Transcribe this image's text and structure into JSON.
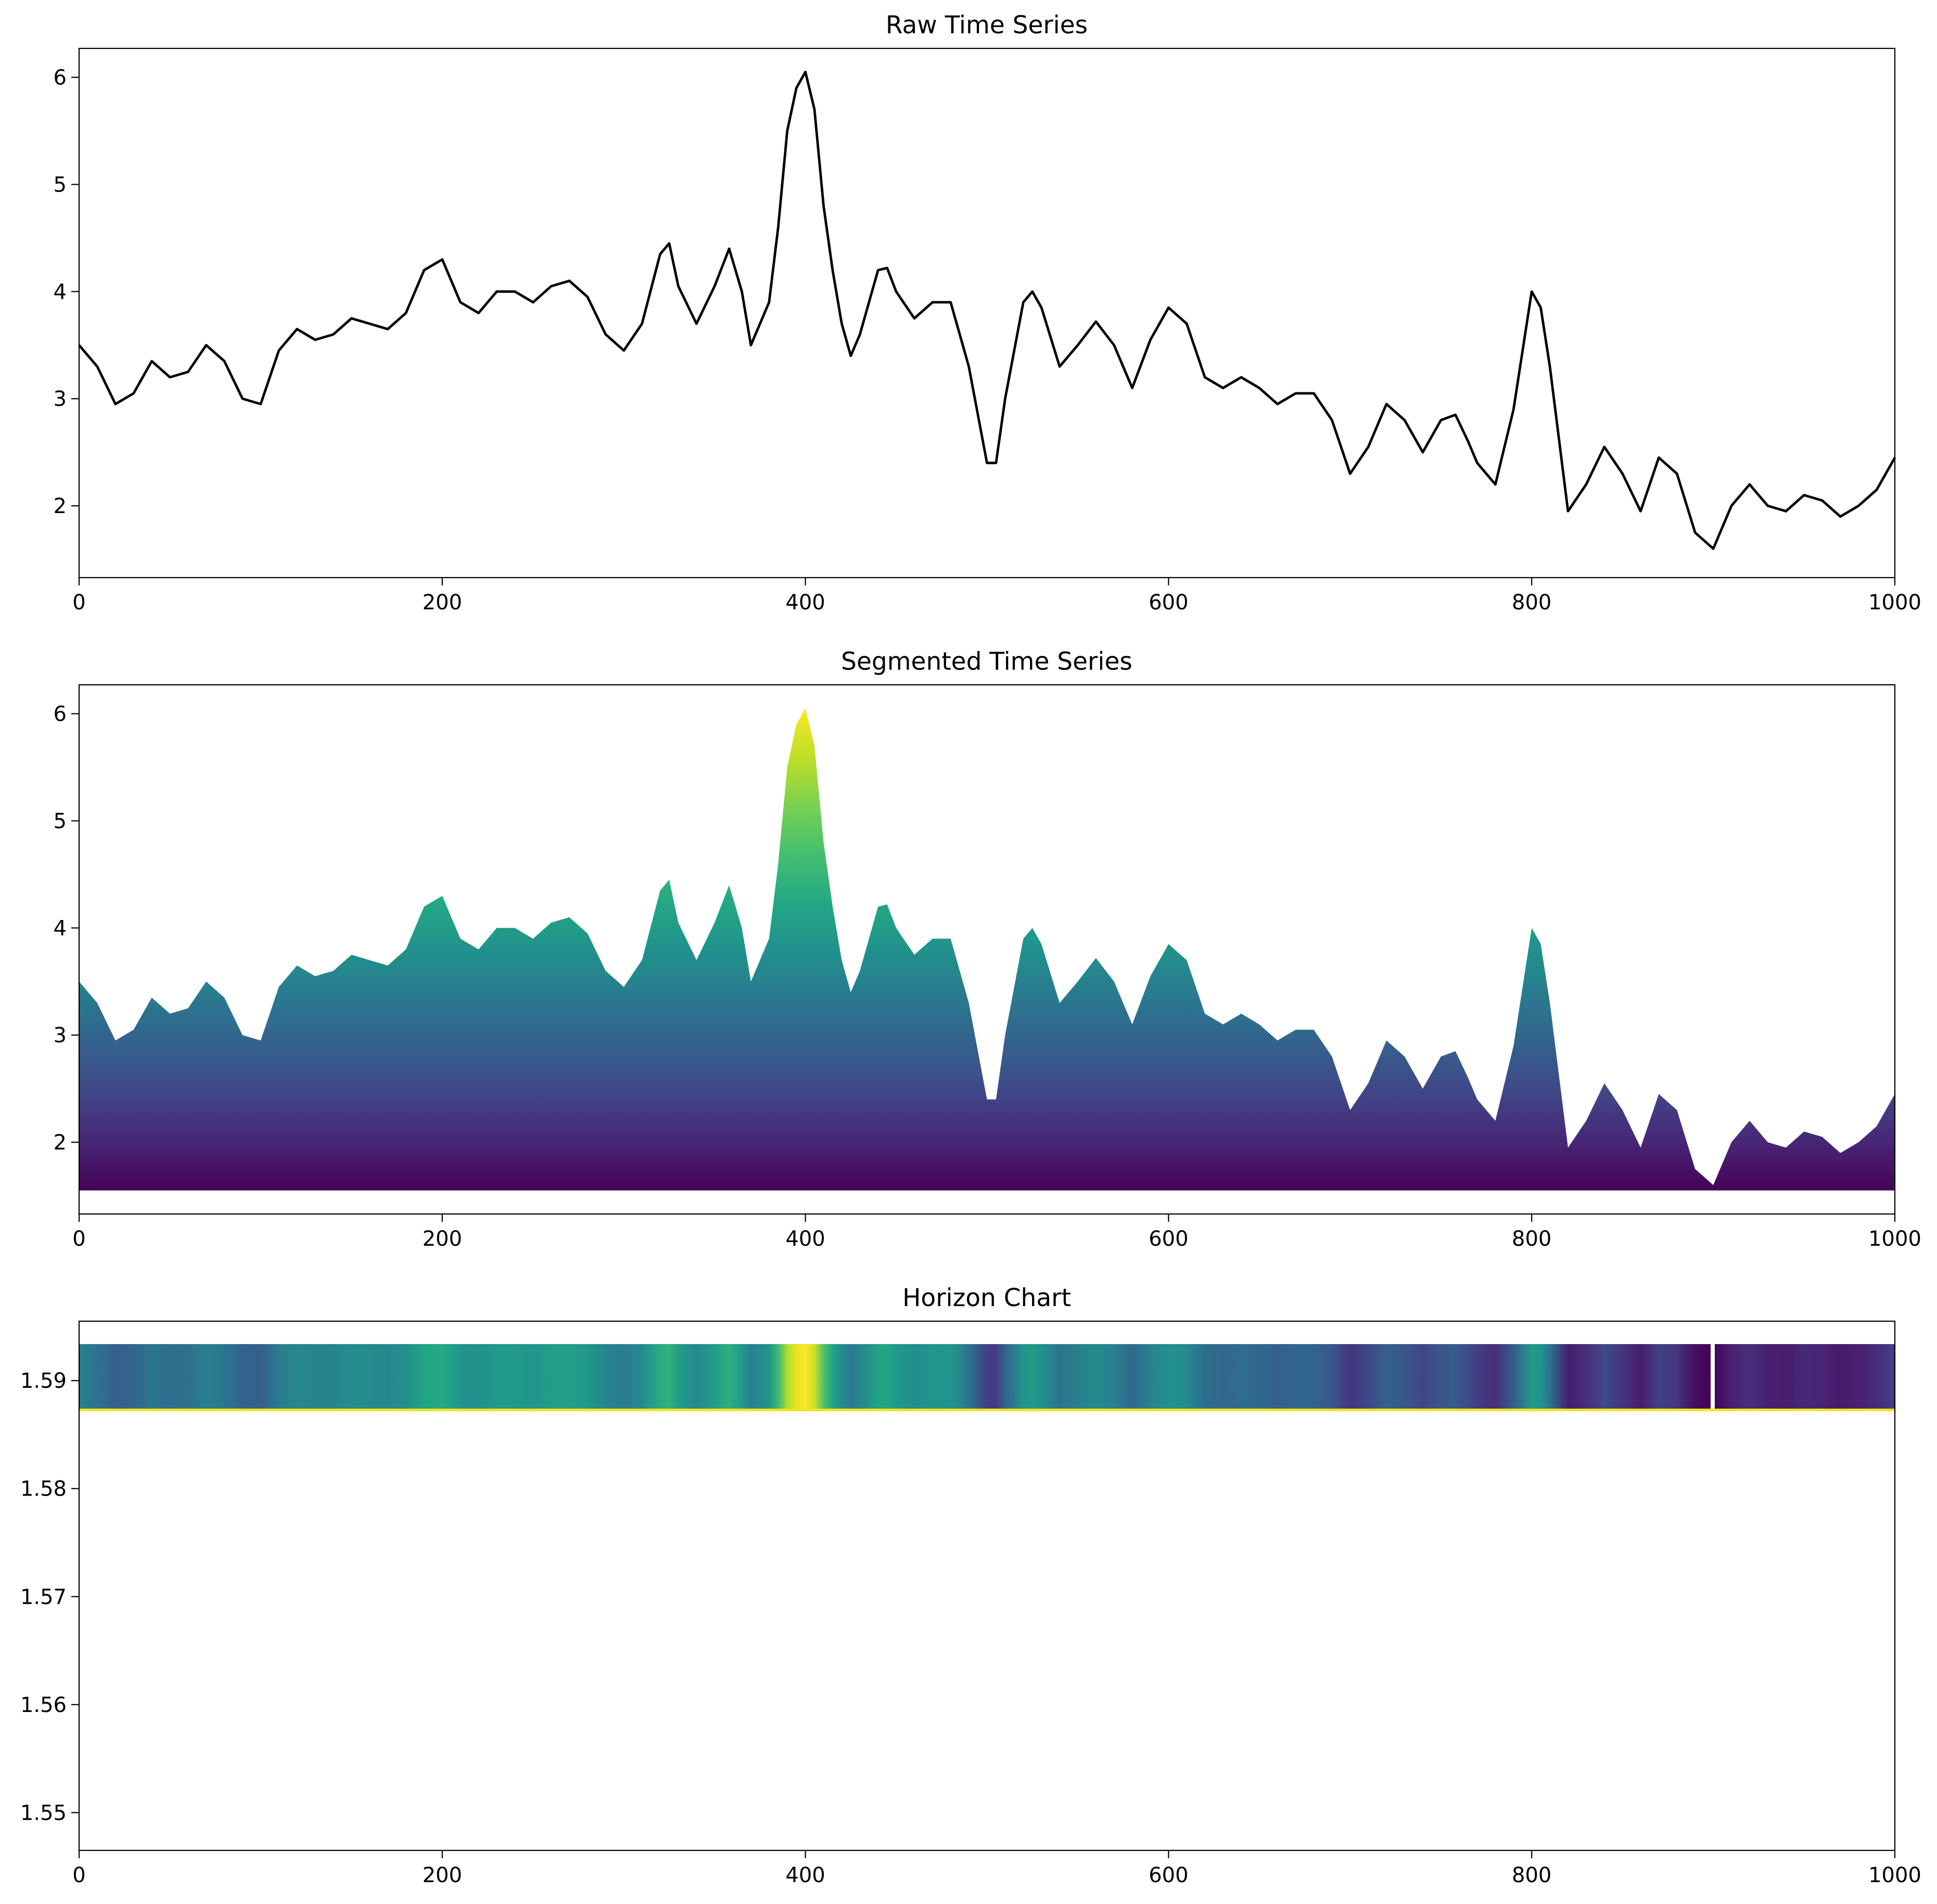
{
  "chart_data": [
    {
      "type": "line",
      "title": "Raw Time Series",
      "xlabel": "",
      "ylabel": "",
      "xlim": [
        0,
        1000
      ],
      "ylim": [
        1.33,
        6.27
      ],
      "xticks": [
        0,
        200,
        400,
        600,
        800,
        1000
      ],
      "yticks": [
        2,
        3,
        4,
        5,
        6
      ],
      "grid": false,
      "color": "#000000",
      "x": [
        0,
        10,
        20,
        30,
        40,
        50,
        60,
        70,
        80,
        90,
        100,
        110,
        120,
        130,
        140,
        150,
        160,
        170,
        180,
        190,
        200,
        210,
        220,
        230,
        240,
        250,
        260,
        270,
        280,
        290,
        300,
        310,
        320,
        325,
        330,
        340,
        350,
        358,
        365,
        370,
        380,
        385,
        390,
        395,
        400,
        405,
        410,
        415,
        420,
        425,
        430,
        440,
        445,
        450,
        460,
        470,
        480,
        490,
        500,
        505,
        510,
        520,
        525,
        530,
        540,
        550,
        560,
        570,
        580,
        590,
        600,
        610,
        620,
        630,
        640,
        650,
        660,
        670,
        680,
        690,
        700,
        710,
        720,
        730,
        740,
        750,
        758,
        765,
        770,
        780,
        790,
        800,
        805,
        810,
        820,
        830,
        840,
        850,
        860,
        870,
        880,
        890,
        900,
        910,
        920,
        930,
        940,
        950,
        960,
        970,
        980,
        990,
        1000
      ],
      "values": [
        3.5,
        3.3,
        2.95,
        3.05,
        3.35,
        3.2,
        3.25,
        3.5,
        3.35,
        3.0,
        2.95,
        3.45,
        3.65,
        3.55,
        3.6,
        3.75,
        3.7,
        3.65,
        3.8,
        4.2,
        4.3,
        3.9,
        3.8,
        4.0,
        4.0,
        3.9,
        4.05,
        4.1,
        3.95,
        3.6,
        3.45,
        3.7,
        4.35,
        4.45,
        4.05,
        3.7,
        4.05,
        4.4,
        4.0,
        3.5,
        3.9,
        4.6,
        5.5,
        5.9,
        6.05,
        5.7,
        4.8,
        4.2,
        3.7,
        3.4,
        3.6,
        4.2,
        4.22,
        4.0,
        3.75,
        3.9,
        3.9,
        3.3,
        2.4,
        2.4,
        3.0,
        3.9,
        4.0,
        3.85,
        3.3,
        3.5,
        3.72,
        3.5,
        3.1,
        3.55,
        3.85,
        3.7,
        3.2,
        3.1,
        3.2,
        3.1,
        2.95,
        3.05,
        3.05,
        2.8,
        2.3,
        2.55,
        2.95,
        2.8,
        2.5,
        2.8,
        2.85,
        2.6,
        2.4,
        2.2,
        2.9,
        4.0,
        3.85,
        3.3,
        1.95,
        2.2,
        2.55,
        2.3,
        1.95,
        2.45,
        2.3,
        1.75,
        1.6,
        2.0,
        2.2,
        2.0,
        1.95,
        2.1,
        2.05,
        1.9,
        2.0,
        2.15,
        2.45
      ]
    },
    {
      "type": "area",
      "title": "Segmented Time Series",
      "xlabel": "",
      "ylabel": "",
      "xlim": [
        0,
        1000
      ],
      "ylim": [
        1.33,
        6.27
      ],
      "baseline": 1.55,
      "xticks": [
        0,
        200,
        400,
        600,
        800,
        1000
      ],
      "yticks": [
        2,
        3,
        4,
        5,
        6
      ],
      "grid": false,
      "colormap": "viridis",
      "same_series_as": "Raw Time Series"
    },
    {
      "type": "heatmap",
      "title": "Horizon Chart",
      "xlabel": "",
      "ylabel": "",
      "xlim": [
        0,
        1000
      ],
      "ylim": [
        1.5465,
        1.5955
      ],
      "band": [
        1.5485,
        1.5935
      ],
      "xticks": [
        0,
        200,
        400,
        600,
        800,
        1000
      ],
      "yticks": [
        1.55,
        1.56,
        1.57,
        1.58,
        1.59
      ],
      "grid": false,
      "colormap": "viridis",
      "same_series_as": "Raw Time Series"
    }
  ]
}
